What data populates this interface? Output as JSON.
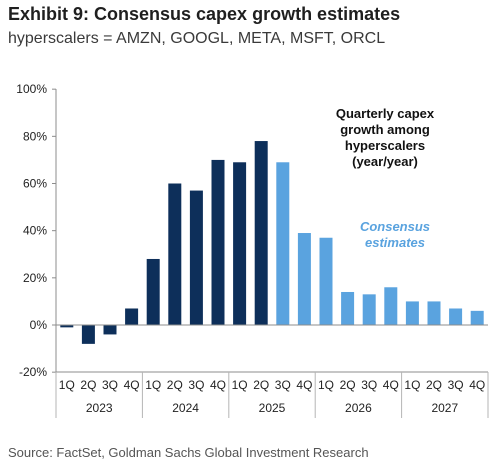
{
  "header": {
    "title": "Exhibit 9: Consensus capex growth estimates",
    "subtitle": "hyperscalers = AMZN, GOOGL, META, MSFT, ORCL"
  },
  "source": "Source: FactSet, Goldman Sachs Global Investment Research",
  "colors": {
    "actual": "#0d2f5a",
    "estimate": "#5aa3df",
    "axis": "#8c8c8c",
    "divider": "#b5b5b5"
  },
  "chart_data": {
    "type": "bar",
    "ylim": [
      -20,
      100
    ],
    "yticks": [
      "-20%",
      "0%",
      "20%",
      "40%",
      "60%",
      "80%",
      "100%"
    ],
    "ytick_values": [
      -20,
      0,
      20,
      40,
      60,
      80,
      100
    ],
    "quarters": [
      "1Q",
      "2Q",
      "3Q",
      "4Q",
      "1Q",
      "2Q",
      "3Q",
      "4Q",
      "1Q",
      "2Q",
      "3Q",
      "4Q",
      "1Q",
      "2Q",
      "3Q",
      "4Q",
      "1Q",
      "2Q",
      "3Q",
      "4Q"
    ],
    "years": [
      "2023",
      "2024",
      "2025",
      "2026",
      "2027"
    ],
    "values": [
      -1,
      -8,
      -4,
      7,
      28,
      60,
      57,
      70,
      69,
      78,
      69,
      39,
      37,
      14,
      13,
      16,
      10,
      10,
      7,
      6
    ],
    "estimate_start_index": 10,
    "annotations": {
      "main": [
        "Quarterly capex",
        "growth among",
        "hyperscalers",
        "(year/year)"
      ],
      "estimate": [
        "Consensus",
        "estimates"
      ]
    }
  }
}
